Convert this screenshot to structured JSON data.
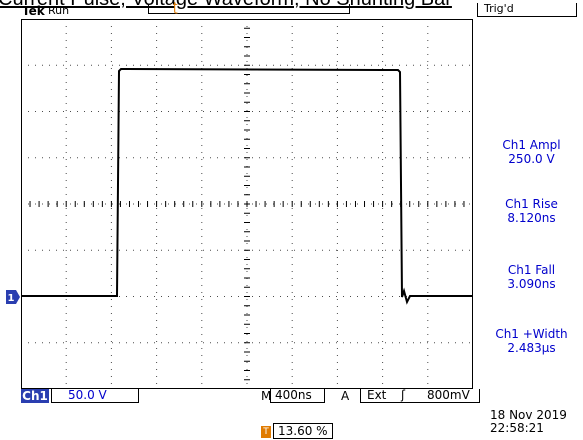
{
  "caption": "Current Pulse, Voltage Waveform, No Shunting Bar",
  "header": {
    "brand": "Tek",
    "run_status": "Run",
    "trigger_status": "Trig'd",
    "record_marker": "T"
  },
  "markers": {
    "trigger_position": "T",
    "channel1": "1"
  },
  "measurements": [
    {
      "label": "Ch1 Ampl",
      "value": "250.0 V"
    },
    {
      "label": "Ch1 Rise",
      "value": "8.120ns"
    },
    {
      "label": "Ch1 Fall",
      "value": "3.090ns"
    },
    {
      "label": "Ch1 +Width",
      "value": "2.483µs"
    }
  ],
  "footer": {
    "channel": "Ch1",
    "volts_per_div": "50.0 V",
    "m_label": "M",
    "timebase": "400ns",
    "a_label": "A",
    "trigger_source": "Ext",
    "trigger_edge": "ʃ",
    "trigger_level": "800mV",
    "position_marker": "T",
    "position": "13.60 %",
    "date": "18 Nov 2019",
    "time": "22:58:21"
  },
  "colors": {
    "accent": "#e07b00",
    "channel": "#2a3eb0",
    "readout_text": "#0000cc"
  }
}
